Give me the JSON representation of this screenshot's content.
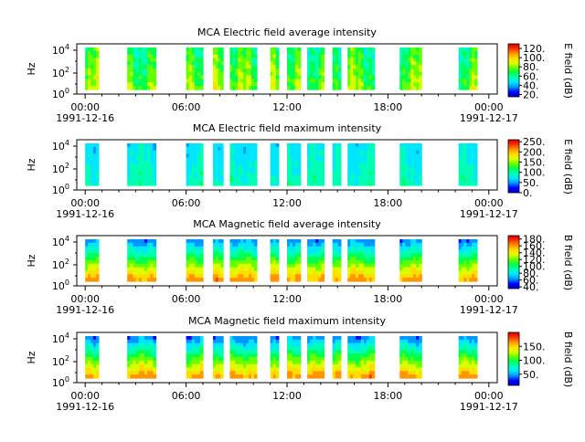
{
  "page": {
    "background": "#ffffff"
  },
  "colorscale": [
    "#0000c8",
    "#0000ff",
    "#0096ff",
    "#00e6ff",
    "#00ffb4",
    "#00ff50",
    "#64ff00",
    "#dcff00",
    "#ffdc00",
    "#ff9600",
    "#ff3200",
    "#d20000"
  ],
  "chart_data": [
    {
      "type": "heatmap",
      "title": "MCA  Electric field average intensity",
      "ylabel": "Hz",
      "yticks": [
        "10^4",
        "10^2",
        "10^0"
      ],
      "xticks": [
        "00:00",
        "06:00",
        "12:00",
        "18:00",
        "00:00"
      ],
      "date_start": "1991-12-16",
      "date_end": "1991-12-17",
      "colorbar_label": "E field (dB)",
      "colorbar_ticks": [
        "120.",
        "100.",
        "80.",
        "60.",
        "40.",
        "20."
      ],
      "xlim_hours": [
        -0.5,
        24.5
      ],
      "data_intervals_hours": [
        [
          0.0,
          0.8
        ],
        [
          2.5,
          4.2
        ],
        [
          6.0,
          7.0
        ],
        [
          7.6,
          8.2
        ],
        [
          8.6,
          10.2
        ],
        [
          11.0,
          11.5
        ],
        [
          12.0,
          12.8
        ],
        [
          13.2,
          14.2
        ],
        [
          14.7,
          15.2
        ],
        [
          15.6,
          17.2
        ],
        [
          18.7,
          20.0
        ],
        [
          22.2,
          23.3
        ]
      ],
      "colorbar_value_range": [
        15,
        130
      ],
      "display": "dominant"
    },
    {
      "type": "heatmap",
      "title": "MCA  Electric field maximum intensity",
      "ylabel": "Hz",
      "yticks": [
        "10^4",
        "10^2",
        "10^0"
      ],
      "xticks": [
        "00:00",
        "06:00",
        "12:00",
        "18:00",
        "00:00"
      ],
      "date_start": "1991-12-16",
      "date_end": "1991-12-17",
      "colorbar_label": "E field (dB)",
      "colorbar_ticks": [
        "250.",
        "200.",
        "150.",
        "100.",
        "50.",
        "0."
      ],
      "xlim_hours": [
        -0.5,
        24.5
      ],
      "data_intervals_hours": [
        [
          0.0,
          0.8
        ],
        [
          2.5,
          4.2
        ],
        [
          6.0,
          7.0
        ],
        [
          7.6,
          8.2
        ],
        [
          8.6,
          10.2
        ],
        [
          11.0,
          11.5
        ],
        [
          12.0,
          12.8
        ],
        [
          13.2,
          14.2
        ],
        [
          14.7,
          15.2
        ],
        [
          15.6,
          17.2
        ],
        [
          18.7,
          20.0
        ],
        [
          22.2,
          23.3
        ]
      ],
      "colorbar_value_range": [
        0,
        260
      ],
      "display": "cool"
    },
    {
      "type": "heatmap",
      "title": "MCA  Magnetic field average intensity",
      "ylabel": "Hz",
      "yticks": [
        "10^4",
        "10^2",
        "10^0"
      ],
      "xticks": [
        "00:00",
        "06:00",
        "12:00",
        "18:00",
        "00:00"
      ],
      "date_start": "1991-12-16",
      "date_end": "1991-12-17",
      "colorbar_label": "B field (dB)",
      "colorbar_ticks": [
        "180.",
        "160.",
        "140.",
        "120.",
        "100.",
        "80.",
        "60.",
        "40."
      ],
      "xlim_hours": [
        -0.5,
        24.5
      ],
      "data_intervals_hours": [
        [
          0.0,
          0.8
        ],
        [
          2.5,
          4.2
        ],
        [
          6.0,
          7.0
        ],
        [
          7.6,
          8.2
        ],
        [
          8.6,
          10.2
        ],
        [
          11.0,
          11.5
        ],
        [
          12.0,
          12.8
        ],
        [
          13.2,
          14.2
        ],
        [
          14.7,
          15.2
        ],
        [
          15.6,
          17.2
        ],
        [
          18.7,
          20.0
        ],
        [
          22.2,
          23.3
        ]
      ],
      "colorbar_value_range": [
        35,
        190
      ],
      "display": "layered"
    },
    {
      "type": "heatmap",
      "title": "MCA  Magnetic field maximum intensity",
      "ylabel": "Hz",
      "yticks": [
        "10^4",
        "10^2",
        "10^0"
      ],
      "xticks": [
        "00:00",
        "06:00",
        "12:00",
        "18:00",
        "00:00"
      ],
      "date_start": "1991-12-16",
      "date_end": "1991-12-17",
      "colorbar_label": "B field (dB)",
      "colorbar_ticks": [
        "150.",
        "100.",
        "50."
      ],
      "xlim_hours": [
        -0.5,
        24.5
      ],
      "data_intervals_hours": [
        [
          0.0,
          0.8
        ],
        [
          2.5,
          4.2
        ],
        [
          6.0,
          7.0
        ],
        [
          7.6,
          8.2
        ],
        [
          8.6,
          10.2
        ],
        [
          11.0,
          11.5
        ],
        [
          12.0,
          12.8
        ],
        [
          13.2,
          14.2
        ],
        [
          14.7,
          15.2
        ],
        [
          15.6,
          17.2
        ],
        [
          18.7,
          20.0
        ],
        [
          22.2,
          23.3
        ]
      ],
      "colorbar_value_range": [
        10,
        200
      ],
      "display": "layered"
    }
  ]
}
